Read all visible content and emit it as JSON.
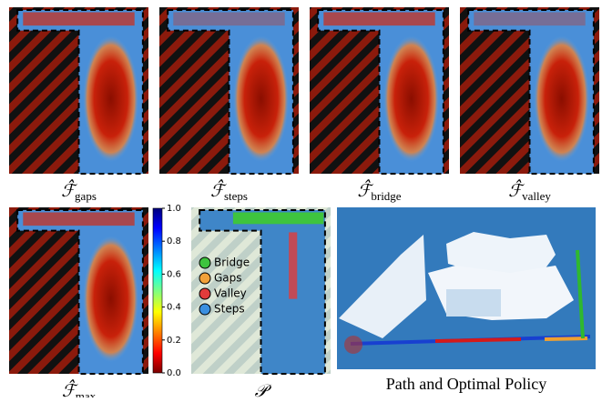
{
  "panels": [
    {
      "symbol": "ℱ̂",
      "subscript": "gaps"
    },
    {
      "symbol": "ℱ̂",
      "subscript": "steps"
    },
    {
      "symbol": "ℱ̂",
      "subscript": "bridge"
    },
    {
      "symbol": "ℱ̂",
      "subscript": "valley"
    },
    {
      "symbol": "ℱ̂",
      "subscript": "max"
    },
    {
      "symbol": "𝒫"
    }
  ],
  "colorbar": {
    "ticks": [
      {
        "value": 0,
        "label": "0.0"
      },
      {
        "value": 0.2,
        "label": "0.2"
      },
      {
        "value": 0.4,
        "label": "0.4"
      },
      {
        "value": 0.6,
        "label": "0.6"
      },
      {
        "value": 0.8,
        "label": "0.8"
      },
      {
        "value": 1,
        "label": "1.0"
      }
    ],
    "range": [
      0,
      1
    ]
  },
  "legend": [
    {
      "name": "Bridge",
      "color": "#3ec43e"
    },
    {
      "name": "Gaps",
      "color": "#f2a13a"
    },
    {
      "name": "Valley",
      "color": "#e23b3b"
    },
    {
      "name": "Steps",
      "color": "#3b8fe0"
    }
  ],
  "right_caption": "Path and Optimal Policy"
}
